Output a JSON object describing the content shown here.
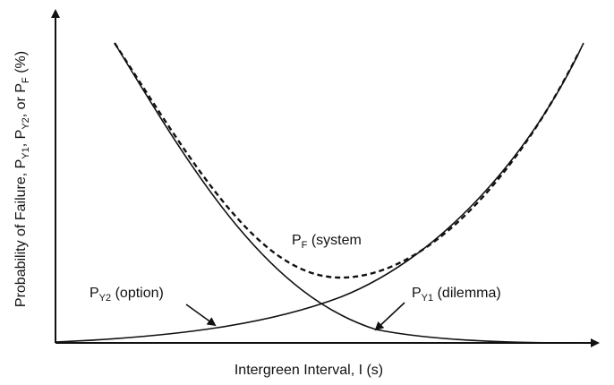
{
  "y_axis_label": [
    "Probability of Failure, P",
    "Y1",
    ", P",
    "Y2",
    ", or P",
    "F",
    " (%)"
  ],
  "x_axis_label": "Intergreen Interval, I (s)",
  "labels": {
    "system": [
      "P",
      "F",
      " (system"
    ],
    "option": [
      "P",
      "Y2",
      " (option)"
    ],
    "dilemma": [
      "P",
      "Y1",
      " (dilemma)"
    ]
  }
}
